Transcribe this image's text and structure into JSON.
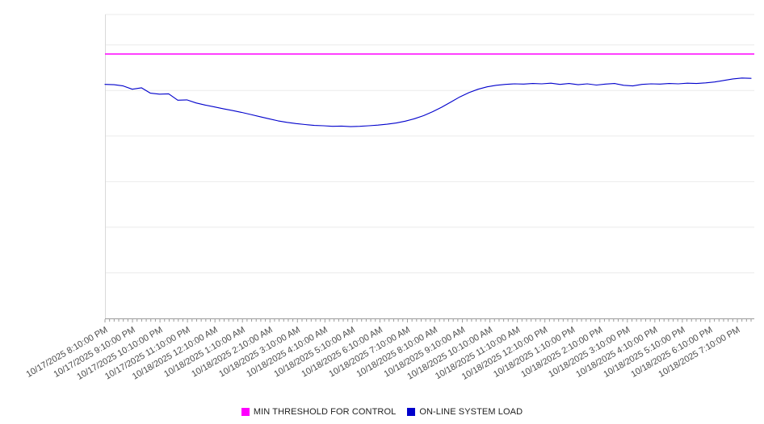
{
  "colors": {
    "threshold": "#ff00ff",
    "load": "#0000cc",
    "grid": "#ebebeb",
    "plot_border": "#d9d9d9",
    "axis": "#9b9b9b",
    "tick_label": "#4a4a4a"
  },
  "legend": {
    "position": "bottom-center"
  },
  "chart_data": {
    "type": "line",
    "title": "",
    "xlabel": "",
    "ylabel": "",
    "grid": true,
    "legend_position": "bottom",
    "ylim": [
      0,
      100
    ],
    "y_tick_labels": [],
    "y_gridlines": [
      15,
      30,
      45,
      60,
      75,
      90,
      100
    ],
    "x_tick_labels": [
      "10/17/2025 8:10:00 PM",
      "10/17/2025 9:10:00 PM",
      "10/17/2025 10:10:00 PM",
      "10/17/2025 11:10:00 PM",
      "10/18/2025 12:10:00 AM",
      "10/18/2025 1:10:00 AM",
      "10/18/2025 2:10:00 AM",
      "10/18/2025 3:10:00 AM",
      "10/18/2025 4:10:00 AM",
      "10/18/2025 5:10:00 AM",
      "10/18/2025 6:10:00 AM",
      "10/18/2025 7:10:00 AM",
      "10/18/2025 8:10:00 AM",
      "10/18/2025 9:10:00 AM",
      "10/18/2025 10:10:00 AM",
      "10/18/2025 11:10:00 AM",
      "10/18/2025 12:10:00 PM",
      "10/18/2025 1:10:00 PM",
      "10/18/2025 2:10:00 PM",
      "10/18/2025 3:10:00 PM",
      "10/18/2025 4:10:00 PM",
      "10/18/2025 5:10:00 PM",
      "10/18/2025 6:10:00 PM",
      "10/18/2025 7:10:00 PM"
    ],
    "minor_ticks_per_hour": 6,
    "series": [
      {
        "name": "MIN THRESHOLD FOR CONTROL",
        "type": "threshold",
        "value": 87
      },
      {
        "name": "ON-LINE SYSTEM LOAD",
        "type": "line",
        "values": [
          77.0,
          76.9,
          76.5,
          75.4,
          75.9,
          74.1,
          73.8,
          73.9,
          71.8,
          71.9,
          70.9,
          70.2,
          69.6,
          69.0,
          68.4,
          67.8,
          67.1,
          66.4,
          65.7,
          65.0,
          64.5,
          64.1,
          63.8,
          63.5,
          63.4,
          63.2,
          63.3,
          63.1,
          63.2,
          63.4,
          63.6,
          63.9,
          64.3,
          64.9,
          65.7,
          66.7,
          68.0,
          69.5,
          71.2,
          72.9,
          74.3,
          75.4,
          76.2,
          76.7,
          77.0,
          77.2,
          77.1,
          77.3,
          77.2,
          77.4,
          77.0,
          77.3,
          76.9,
          77.2,
          76.8,
          77.1,
          77.3,
          76.7,
          76.5,
          77.0,
          77.2,
          77.1,
          77.3,
          77.2,
          77.4,
          77.3,
          77.5,
          77.8,
          78.3,
          78.8,
          79.1,
          79.0
        ]
      }
    ]
  }
}
